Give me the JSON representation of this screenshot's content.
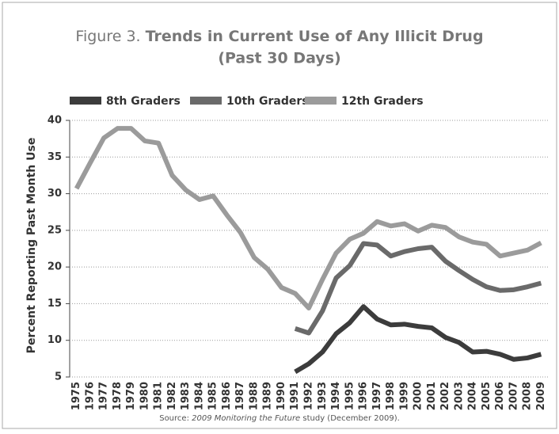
{
  "chart_data": {
    "type": "line",
    "title_prefix": "Figure 3.",
    "title": "Trends in Current Use of Any Illicit Drug",
    "subtitle": "(Past 30 Days)",
    "y_label": "Percent Reporting Past Month Use",
    "source": [
      "Source: ",
      "2009 Monitoring the Future",
      " study (December 2009)."
    ],
    "categories": [
      "1975",
      "1976",
      "1977",
      "1978",
      "1979",
      "1980",
      "1981",
      "1982",
      "1983",
      "1984",
      "1985",
      "1986",
      "1987",
      "1988",
      "1989",
      "1990",
      "1991",
      "1992",
      "1993",
      "1994",
      "1995",
      "1996",
      "1997",
      "1998",
      "1999",
      "2000",
      "2001",
      "2002",
      "2003",
      "2004",
      "2005",
      "2006",
      "2007",
      "2008",
      "2009"
    ],
    "series": [
      {
        "name": "8th Graders",
        "color": "#3c3c3c",
        "values": [
          null,
          null,
          null,
          null,
          null,
          null,
          null,
          null,
          null,
          null,
          null,
          null,
          null,
          null,
          null,
          null,
          5.7,
          6.8,
          8.4,
          10.9,
          12.4,
          14.6,
          12.9,
          12.1,
          12.2,
          11.9,
          11.7,
          10.4,
          9.7,
          8.4,
          8.5,
          8.1,
          7.4,
          7.6,
          8.1
        ]
      },
      {
        "name": "10th Graders",
        "color": "#6a6a6a",
        "values": [
          null,
          null,
          null,
          null,
          null,
          null,
          null,
          null,
          null,
          null,
          null,
          null,
          null,
          null,
          null,
          null,
          11.6,
          11.0,
          14.0,
          18.5,
          20.2,
          23.2,
          23.0,
          21.5,
          22.1,
          22.5,
          22.7,
          20.8,
          19.5,
          18.3,
          17.3,
          16.8,
          16.9,
          17.3,
          17.8
        ]
      },
      {
        "name": "12th Graders",
        "color": "#9b9b9b",
        "values": [
          30.7,
          34.2,
          37.6,
          38.9,
          38.9,
          37.2,
          36.9,
          32.5,
          30.5,
          29.2,
          29.7,
          27.1,
          24.7,
          21.3,
          19.7,
          17.2,
          16.4,
          14.4,
          18.3,
          21.9,
          23.8,
          24.6,
          26.2,
          25.6,
          25.9,
          24.9,
          25.7,
          25.4,
          24.1,
          23.4,
          23.1,
          21.5,
          21.9,
          22.3,
          23.3
        ]
      }
    ],
    "ylim": [
      5,
      40
    ],
    "yticks": [
      5,
      10,
      15,
      20,
      25,
      30,
      35,
      40
    ],
    "grid": true
  }
}
